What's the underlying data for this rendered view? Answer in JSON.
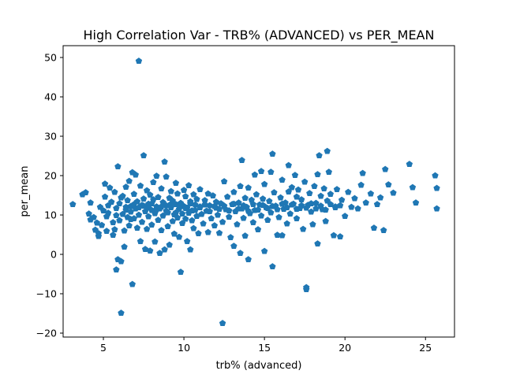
{
  "chart_data": {
    "type": "scatter",
    "title": "High Correlation Var - TRB% (ADVANCED) vs PER_MEAN",
    "xlabel": "trb% (advanced)",
    "ylabel": "per_mean",
    "xlim": [
      2.5,
      26.8
    ],
    "ylim": [
      -21,
      53
    ],
    "xticks": [
      5,
      10,
      15,
      20,
      25
    ],
    "yticks": [
      -20,
      -10,
      0,
      10,
      20,
      30,
      40,
      50
    ],
    "marker": "pentagon",
    "grid": false,
    "legend": "none",
    "series": [
      {
        "color": "#1f77b4",
        "points": [
          [
            3.1,
            12.7
          ],
          [
            3.7,
            15.2
          ],
          [
            3.9,
            15.7
          ],
          [
            4.1,
            10.3
          ],
          [
            4.2,
            13.1
          ],
          [
            4.2,
            8.8
          ],
          [
            4.4,
            9.4
          ],
          [
            4.5,
            6.2
          ],
          [
            4.7,
            5.3
          ],
          [
            4.7,
            4.6
          ],
          [
            4.8,
            12.0
          ],
          [
            4.9,
            7.4
          ],
          [
            5.0,
            11.1
          ],
          [
            5.1,
            14.6
          ],
          [
            5.1,
            17.9
          ],
          [
            5.2,
            9.6
          ],
          [
            5.2,
            5.9
          ],
          [
            5.3,
            10.5
          ],
          [
            5.4,
            16.9
          ],
          [
            5.5,
            13.3
          ],
          [
            5.6,
            8.1
          ],
          [
            5.6,
            4.9
          ],
          [
            5.7,
            6.3
          ],
          [
            5.7,
            15.8
          ],
          [
            5.8,
            11.7
          ],
          [
            5.8,
            -3.9
          ],
          [
            5.9,
            22.3
          ],
          [
            5.9,
            -1.3
          ],
          [
            6.0,
            12.9
          ],
          [
            6.0,
            8.6
          ],
          [
            6.1,
            -1.8
          ],
          [
            6.1,
            -14.9
          ],
          [
            6.2,
            10.2
          ],
          [
            6.2,
            14.8
          ],
          [
            6.3,
            6.0
          ],
          [
            6.3,
            1.9
          ],
          [
            6.4,
            11.3
          ],
          [
            6.4,
            17.1
          ],
          [
            6.5,
            9.4
          ],
          [
            6.5,
            13.7
          ],
          [
            6.6,
            7.3
          ],
          [
            6.6,
            18.6
          ],
          [
            6.7,
            10.8
          ],
          [
            6.7,
            12.2
          ],
          [
            6.8,
            20.8
          ],
          [
            6.8,
            -7.6
          ],
          [
            6.9,
            15.3
          ],
          [
            6.9,
            9.1
          ],
          [
            7.0,
            11.6
          ],
          [
            7.0,
            20.2
          ],
          [
            7.1,
            13.4
          ],
          [
            7.1,
            6.7
          ],
          [
            7.2,
            49.1
          ],
          [
            7.2,
            10.0
          ],
          [
            7.3,
            17.4
          ],
          [
            7.3,
            3.3
          ],
          [
            7.4,
            12.5
          ],
          [
            7.4,
            8.2
          ],
          [
            7.5,
            25.1
          ],
          [
            7.5,
            14.1
          ],
          [
            7.6,
            1.3
          ],
          [
            7.6,
            10.9
          ],
          [
            7.7,
            16.2
          ],
          [
            7.7,
            6.4
          ],
          [
            7.8,
            12.8
          ],
          [
            7.8,
            9.6
          ],
          [
            7.9,
            0.9
          ],
          [
            7.9,
            15.1
          ],
          [
            8.0,
            11.2
          ],
          [
            8.0,
            7.5
          ],
          [
            8.1,
            13.9
          ],
          [
            8.1,
            18.3
          ],
          [
            8.2,
            10.4
          ],
          [
            8.2,
            3.2
          ],
          [
            8.3,
            12.1
          ],
          [
            8.3,
            19.9
          ],
          [
            8.4,
            8.7
          ],
          [
            8.4,
            14.5
          ],
          [
            8.5,
            0.3
          ],
          [
            8.5,
            11.6
          ],
          [
            8.6,
            16.7
          ],
          [
            8.6,
            6.1
          ],
          [
            8.7,
            13.2
          ],
          [
            8.7,
            9.8
          ],
          [
            8.8,
            23.5
          ],
          [
            8.8,
            1.2
          ],
          [
            8.9,
            12.4
          ],
          [
            8.9,
            19.7
          ],
          [
            9.0,
            10.6
          ],
          [
            9.0,
            7.1
          ],
          [
            9.1,
            14.3
          ],
          [
            9.1,
            2.4
          ],
          [
            9.2,
            11.9
          ],
          [
            9.2,
            16.0
          ],
          [
            9.3,
            8.4
          ],
          [
            9.3,
            13.6
          ],
          [
            9.4,
            10.1
          ],
          [
            9.4,
            5.2
          ],
          [
            9.5,
            12.7
          ],
          [
            9.5,
            18.1
          ],
          [
            9.6,
            9.3
          ],
          [
            9.6,
            15.4
          ],
          [
            9.7,
            11.5
          ],
          [
            9.7,
            4.4
          ],
          [
            9.8,
            -4.5
          ],
          [
            9.8,
            13.0
          ],
          [
            9.9,
            10.3
          ],
          [
            9.9,
            7.9
          ],
          [
            10.0,
            16.3
          ],
          [
            10.0,
            12.2
          ],
          [
            10.1,
            9.0
          ],
          [
            10.1,
            14.7
          ],
          [
            10.2,
            11.8
          ],
          [
            10.2,
            3.3
          ],
          [
            10.3,
            17.5
          ],
          [
            10.3,
            10.5
          ],
          [
            10.4,
            1.2
          ],
          [
            10.4,
            13.4
          ],
          [
            10.5,
            8.6
          ],
          [
            10.5,
            11.1
          ],
          [
            10.6,
            15.2
          ],
          [
            10.6,
            6.6
          ],
          [
            10.7,
            12.6
          ],
          [
            10.8,
            9.7
          ],
          [
            10.8,
            14.0
          ],
          [
            10.9,
            5.3
          ],
          [
            11.0,
            12.1
          ],
          [
            11.0,
            16.5
          ],
          [
            11.1,
            10.2
          ],
          [
            11.2,
            7.8
          ],
          [
            11.3,
            13.7
          ],
          [
            11.4,
            11.0
          ],
          [
            11.5,
            15.4
          ],
          [
            11.5,
            5.6
          ],
          [
            11.6,
            12.4
          ],
          [
            11.7,
            9.1
          ],
          [
            11.8,
            14.9
          ],
          [
            11.9,
            7.3
          ],
          [
            12.0,
            11.8
          ],
          [
            12.0,
            13.3
          ],
          [
            12.1,
            10.0
          ],
          [
            12.2,
            5.4
          ],
          [
            12.3,
            12.9
          ],
          [
            12.4,
            -17.5
          ],
          [
            12.4,
            8.2
          ],
          [
            12.5,
            18.5
          ],
          [
            12.6,
            11.4
          ],
          [
            12.7,
            14.6
          ],
          [
            12.8,
            9.5
          ],
          [
            12.9,
            4.3
          ],
          [
            13.0,
            12.7
          ],
          [
            13.1,
            15.8
          ],
          [
            13.1,
            2.1
          ],
          [
            13.2,
            10.9
          ],
          [
            13.3,
            7.6
          ],
          [
            13.4,
            13.1
          ],
          [
            13.5,
            0.3
          ],
          [
            13.5,
            17.3
          ],
          [
            13.6,
            23.9
          ],
          [
            13.6,
            11.6
          ],
          [
            13.7,
            9.2
          ],
          [
            13.8,
            14.3
          ],
          [
            13.8,
            4.7
          ],
          [
            13.9,
            12.0
          ],
          [
            14.0,
            -1.3
          ],
          [
            14.0,
            16.9
          ],
          [
            14.1,
            10.4
          ],
          [
            14.2,
            13.8
          ],
          [
            14.3,
            8.1
          ],
          [
            14.4,
            20.2
          ],
          [
            14.4,
            11.2
          ],
          [
            14.5,
            15.2
          ],
          [
            14.6,
            6.3
          ],
          [
            14.7,
            12.6
          ],
          [
            14.8,
            21.1
          ],
          [
            14.8,
            9.8
          ],
          [
            14.9,
            14.1
          ],
          [
            15.0,
            0.8
          ],
          [
            15.0,
            17.8
          ],
          [
            15.1,
            11.9
          ],
          [
            15.2,
            8.7
          ],
          [
            15.3,
            13.5
          ],
          [
            15.4,
            20.9
          ],
          [
            15.4,
            10.6
          ],
          [
            15.5,
            25.5
          ],
          [
            15.5,
            -3.1
          ],
          [
            15.6,
            15.7
          ],
          [
            15.7,
            12.3
          ],
          [
            15.8,
            4.9
          ],
          [
            15.9,
            9.4
          ],
          [
            16.0,
            14.4
          ],
          [
            16.1,
            4.8
          ],
          [
            16.1,
            18.9
          ],
          [
            16.2,
            11.5
          ],
          [
            16.3,
            13.1
          ],
          [
            16.4,
            7.8
          ],
          [
            16.5,
            22.6
          ],
          [
            16.5,
            15.9
          ],
          [
            16.6,
            10.3
          ],
          [
            16.7,
            17.0
          ],
          [
            16.8,
            12.8
          ],
          [
            16.9,
            20.1
          ],
          [
            17.0,
            14.6
          ],
          [
            17.0,
            9.1
          ],
          [
            17.1,
            16.4
          ],
          [
            17.2,
            11.7
          ],
          [
            17.3,
            13.9
          ],
          [
            17.4,
            6.4
          ],
          [
            17.5,
            18.4
          ],
          [
            17.6,
            -8.9
          ],
          [
            17.6,
            -8.4
          ],
          [
            17.7,
            12.5
          ],
          [
            17.8,
            15.5
          ],
          [
            17.9,
            10.8
          ],
          [
            18.0,
            7.6
          ],
          [
            18.1,
            17.3
          ],
          [
            18.2,
            13.0
          ],
          [
            18.3,
            2.7
          ],
          [
            18.3,
            20.3
          ],
          [
            18.4,
            25.1
          ],
          [
            18.5,
            14.8
          ],
          [
            18.6,
            11.4
          ],
          [
            18.7,
            16.7
          ],
          [
            18.8,
            8.4
          ],
          [
            18.9,
            26.2
          ],
          [
            18.9,
            13.6
          ],
          [
            19.0,
            20.9
          ],
          [
            19.1,
            15.3
          ],
          [
            19.3,
            4.8
          ],
          [
            19.4,
            12.1
          ],
          [
            19.5,
            16.5
          ],
          [
            19.7,
            4.5
          ],
          [
            19.8,
            13.8
          ],
          [
            20.0,
            9.7
          ],
          [
            20.2,
            15.8
          ],
          [
            20.4,
            12.0
          ],
          [
            20.6,
            14.2
          ],
          [
            20.8,
            11.6
          ],
          [
            21.0,
            17.6
          ],
          [
            21.1,
            20.6
          ],
          [
            21.3,
            13.1
          ],
          [
            21.6,
            15.4
          ],
          [
            21.8,
            6.7
          ],
          [
            22.0,
            12.7
          ],
          [
            22.2,
            14.4
          ],
          [
            22.4,
            6.1
          ],
          [
            22.5,
            21.6
          ],
          [
            22.7,
            17.7
          ],
          [
            23.0,
            15.6
          ],
          [
            24.0,
            22.9
          ],
          [
            24.2,
            17.0
          ],
          [
            24.4,
            13.1
          ],
          [
            25.6,
            20.0
          ],
          [
            25.7,
            16.8
          ],
          [
            25.7,
            11.6
          ],
          [
            4.6,
            8.0
          ],
          [
            5.3,
            12.4
          ],
          [
            5.8,
            9.9
          ],
          [
            6.1,
            14.4
          ],
          [
            6.4,
            12.0
          ],
          [
            6.7,
            8.9
          ],
          [
            6.9,
            12.7
          ],
          [
            7.2,
            11.9
          ],
          [
            7.5,
            12.3
          ],
          [
            7.8,
            11.8
          ],
          [
            8.0,
            12.9
          ],
          [
            8.3,
            11.4
          ],
          [
            8.6,
            12.1
          ],
          [
            8.9,
            11.0
          ],
          [
            9.2,
            12.8
          ],
          [
            9.5,
            10.6
          ],
          [
            9.8,
            12.5
          ],
          [
            10.1,
            11.7
          ],
          [
            10.4,
            12.9
          ],
          [
            10.7,
            11.2
          ],
          [
            11.0,
            11.9
          ],
          [
            11.3,
            12.6
          ],
          [
            11.6,
            10.9
          ],
          [
            11.9,
            12.2
          ],
          [
            12.2,
            11.5
          ],
          [
            12.5,
            12.3
          ],
          [
            12.8,
            11.1
          ],
          [
            13.1,
            12.8
          ],
          [
            13.4,
            11.6
          ],
          [
            13.7,
            12.4
          ],
          [
            14.0,
            11.0
          ],
          [
            14.3,
            12.7
          ],
          [
            14.6,
            11.3
          ],
          [
            14.9,
            12.5
          ],
          [
            15.2,
            11.7
          ],
          [
            15.5,
            12.2
          ],
          [
            15.8,
            11.4
          ],
          [
            16.1,
            12.8
          ],
          [
            16.4,
            11.9
          ],
          [
            16.7,
            12.6
          ],
          [
            17.0,
            11.5
          ],
          [
            17.3,
            12.4
          ],
          [
            17.6,
            11.8
          ],
          [
            17.9,
            12.9
          ],
          [
            18.2,
            11.6
          ],
          [
            18.5,
            12.3
          ],
          [
            18.8,
            11.3
          ],
          [
            19.1,
            12.7
          ],
          [
            19.4,
            11.9
          ],
          [
            19.7,
            12.4
          ]
        ]
      }
    ]
  }
}
